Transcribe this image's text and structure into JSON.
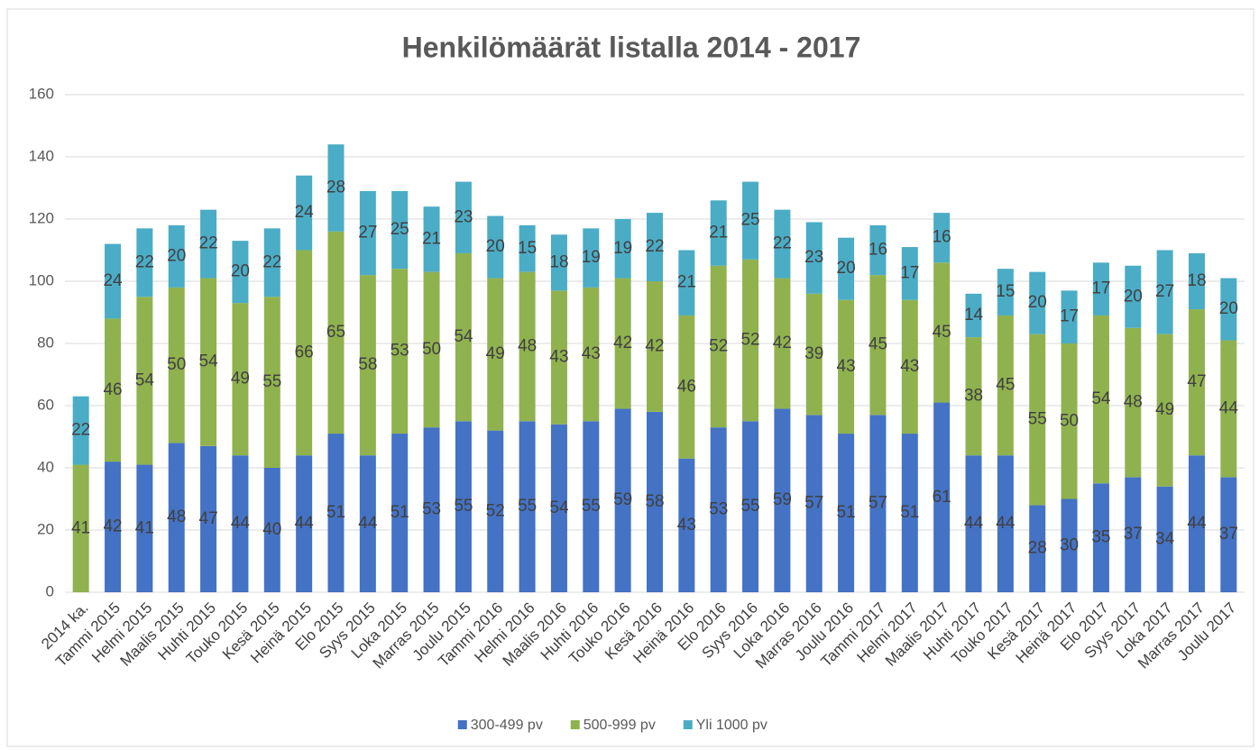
{
  "chart_data": {
    "type": "bar",
    "stacked": true,
    "title": "Henkilömäärät listalla 2014 - 2017",
    "categories": [
      "2014 ka.",
      "Tammi 2015",
      "Helmi 2015",
      "Maalis 2015",
      "Huhti 2015",
      "Touko 2015",
      "Kesä 2015",
      "Heinä 2015",
      "Elo 2015",
      "Syys 2015",
      "Loka 2015",
      "Marras 2015",
      "Joulu 2015",
      "Tammi 2016",
      "Helmi 2016",
      "Maalis 2016",
      "Huhti 2016",
      "Touko 2016",
      "Kesä 2016",
      "Heinä 2016",
      "Elo 2016",
      "Syys 2016",
      "Loka 2016",
      "Marras 2016",
      "Joulu 2016",
      "Tammi 2017",
      "Helmi 2017",
      "Maalis 2017",
      "Huhti 2017",
      "Touko 2017",
      "Kesä 2017",
      "Heinä 2017",
      "Elo 2017",
      "Syys 2017",
      "Loka 2017",
      "Marras 2017",
      "Joulu 2017"
    ],
    "series": [
      {
        "name": "300-499 pv",
        "color": "#4472c4",
        "values": [
          null,
          42,
          41,
          48,
          47,
          44,
          40,
          44,
          51,
          44,
          51,
          53,
          55,
          52,
          55,
          54,
          55,
          59,
          58,
          43,
          53,
          55,
          59,
          57,
          51,
          57,
          51,
          61,
          44,
          44,
          28,
          30,
          35,
          37,
          34,
          44,
          37
        ]
      },
      {
        "name": "500-999 pv",
        "color": "#8fb24f",
        "values": [
          41,
          46,
          54,
          50,
          54,
          49,
          55,
          66,
          65,
          58,
          53,
          50,
          54,
          49,
          48,
          43,
          43,
          42,
          42,
          46,
          52,
          52,
          42,
          39,
          43,
          45,
          43,
          45,
          38,
          45,
          55,
          50,
          54,
          48,
          49,
          47,
          44
        ]
      },
      {
        "name": "Yli 1000 pv",
        "color": "#4bacc6",
        "values": [
          22,
          24,
          22,
          20,
          22,
          20,
          22,
          24,
          28,
          27,
          25,
          21,
          23,
          20,
          15,
          18,
          19,
          19,
          22,
          21,
          21,
          25,
          22,
          23,
          20,
          16,
          17,
          16,
          14,
          15,
          20,
          17,
          17,
          20,
          27,
          18,
          20
        ]
      }
    ],
    "ylim": [
      0,
      160
    ],
    "yticks": [
      0,
      20,
      40,
      60,
      80,
      100,
      120,
      140,
      160
    ],
    "grid": true,
    "legend": "bottom"
  }
}
